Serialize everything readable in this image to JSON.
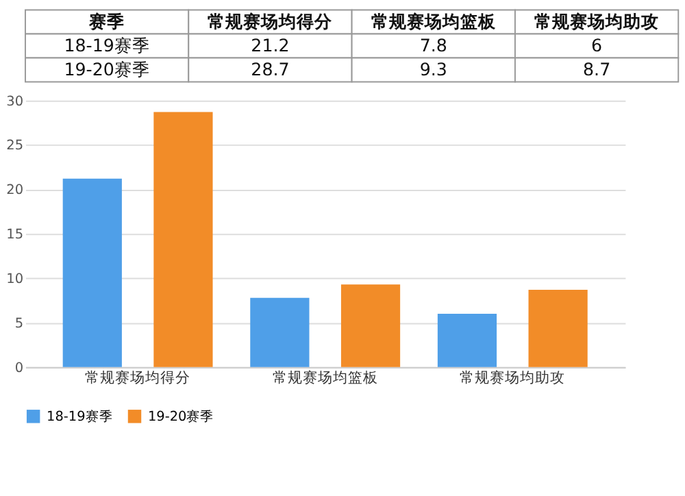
{
  "chart_data": [
    {
      "type": "other",
      "categories": [
        "赛季",
        "常规赛场均得分",
        "常规赛场均篮板",
        "常规赛场均助攻"
      ],
      "annotations": [
        "18-19赛季",
        "21.2",
        "7.8",
        "6",
        "19-20赛季",
        "28.7",
        "9.3",
        "8.7"
      ]
    },
    {
      "type": "bar",
      "categories": [
        "常规赛场均得分",
        "常规赛场均篮板",
        "常规赛场均助攻"
      ],
      "series": [
        {
          "name": "18-19赛季",
          "color": "#4f9fe8",
          "values": [
            21.2,
            7.8,
            6
          ]
        },
        {
          "name": "19-20赛季",
          "color": "#f28c28",
          "values": [
            28.7,
            9.3,
            8.7
          ]
        }
      ],
      "ylim": [
        0,
        30
      ],
      "yticks": [
        0,
        5,
        10,
        15,
        20,
        25,
        30
      ],
      "grid": "y",
      "legend": "bottom"
    }
  ]
}
